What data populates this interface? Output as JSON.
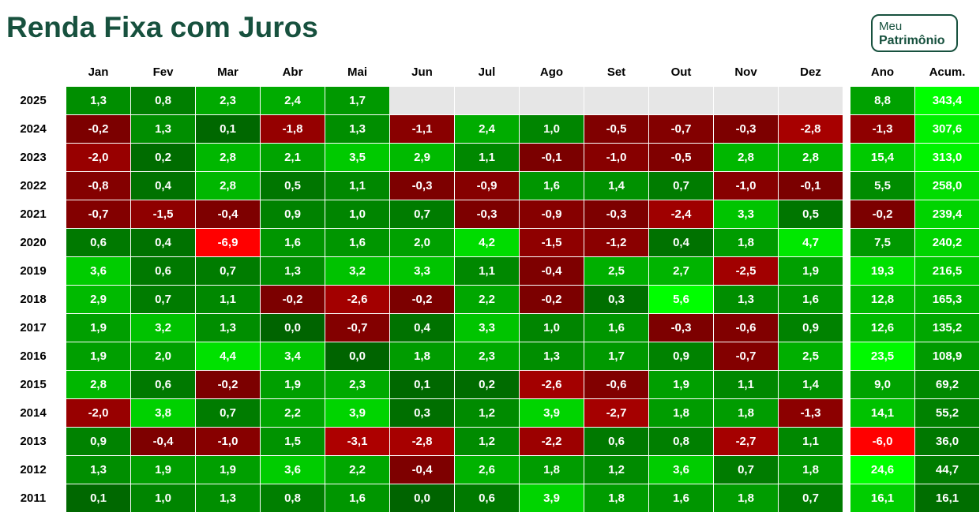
{
  "title": "Renda Fixa com Juros",
  "logo": {
    "line1": "Meu",
    "line2": "Patrimônio"
  },
  "colors": {
    "title": "#17513e",
    "empty": "#e6e6e6",
    "scale_low": "#ff0000",
    "scale_neg": "#7a0000",
    "scale_pos": "#006400",
    "scale_high": "#00ff00"
  },
  "chart_data": {
    "type": "heatmap",
    "title": "Renda Fixa com Juros",
    "columns": [
      "Jan",
      "Fev",
      "Mar",
      "Abr",
      "Mai",
      "Jun",
      "Jul",
      "Ago",
      "Set",
      "Out",
      "Nov",
      "Dez"
    ],
    "summary_columns": [
      "Ano",
      "Acum."
    ],
    "rows": [
      {
        "year": "2025",
        "months": [
          "1,3",
          "0,8",
          "2,3",
          "2,4",
          "1,7",
          null,
          null,
          null,
          null,
          null,
          null,
          null
        ],
        "ano": "8,8",
        "acum": "343,4"
      },
      {
        "year": "2024",
        "months": [
          "-0,2",
          "1,3",
          "0,1",
          "-1,8",
          "1,3",
          "-1,1",
          "2,4",
          "1,0",
          "-0,5",
          "-0,7",
          "-0,3",
          "-2,8"
        ],
        "ano": "-1,3",
        "acum": "307,6"
      },
      {
        "year": "2023",
        "months": [
          "-2,0",
          "0,2",
          "2,8",
          "2,1",
          "3,5",
          "2,9",
          "1,1",
          "-0,1",
          "-1,0",
          "-0,5",
          "2,8",
          "2,8"
        ],
        "ano": "15,4",
        "acum": "313,0"
      },
      {
        "year": "2022",
        "months": [
          "-0,8",
          "0,4",
          "2,8",
          "0,5",
          "1,1",
          "-0,3",
          "-0,9",
          "1,6",
          "1,4",
          "0,7",
          "-1,0",
          "-0,1"
        ],
        "ano": "5,5",
        "acum": "258,0"
      },
      {
        "year": "2021",
        "months": [
          "-0,7",
          "-1,5",
          "-0,4",
          "0,9",
          "1,0",
          "0,7",
          "-0,3",
          "-0,9",
          "-0,3",
          "-2,4",
          "3,3",
          "0,5"
        ],
        "ano": "-0,2",
        "acum": "239,4"
      },
      {
        "year": "2020",
        "months": [
          "0,6",
          "0,4",
          "-6,9",
          "1,6",
          "1,6",
          "2,0",
          "4,2",
          "-1,5",
          "-1,2",
          "0,4",
          "1,8",
          "4,7"
        ],
        "ano": "7,5",
        "acum": "240,2"
      },
      {
        "year": "2019",
        "months": [
          "3,6",
          "0,6",
          "0,7",
          "1,3",
          "3,2",
          "3,3",
          "1,1",
          "-0,4",
          "2,5",
          "2,7",
          "-2,5",
          "1,9"
        ],
        "ano": "19,3",
        "acum": "216,5"
      },
      {
        "year": "2018",
        "months": [
          "2,9",
          "0,7",
          "1,1",
          "-0,2",
          "-2,6",
          "-0,2",
          "2,2",
          "-0,2",
          "0,3",
          "5,6",
          "1,3",
          "1,6"
        ],
        "ano": "12,8",
        "acum": "165,3"
      },
      {
        "year": "2017",
        "months": [
          "1,9",
          "3,2",
          "1,3",
          "0,0",
          "-0,7",
          "0,4",
          "3,3",
          "1,0",
          "1,6",
          "-0,3",
          "-0,6",
          "0,9"
        ],
        "ano": "12,6",
        "acum": "135,2"
      },
      {
        "year": "2016",
        "months": [
          "1,9",
          "2,0",
          "4,4",
          "3,4",
          "0,0",
          "1,8",
          "2,3",
          "1,3",
          "1,7",
          "0,9",
          "-0,7",
          "2,5"
        ],
        "ano": "23,5",
        "acum": "108,9"
      },
      {
        "year": "2015",
        "months": [
          "2,8",
          "0,6",
          "-0,2",
          "1,9",
          "2,3",
          "0,1",
          "0,2",
          "-2,6",
          "-0,6",
          "1,9",
          "1,1",
          "1,4"
        ],
        "ano": "9,0",
        "acum": "69,2"
      },
      {
        "year": "2014",
        "months": [
          "-2,0",
          "3,8",
          "0,7",
          "2,2",
          "3,9",
          "0,3",
          "1,2",
          "3,9",
          "-2,7",
          "1,8",
          "1,8",
          "-1,3"
        ],
        "ano": "14,1",
        "acum": "55,2"
      },
      {
        "year": "2013",
        "months": [
          "0,9",
          "-0,4",
          "-1,0",
          "1,5",
          "-3,1",
          "-2,8",
          "1,2",
          "-2,2",
          "0,6",
          "0,8",
          "-2,7",
          "1,1"
        ],
        "ano": "-6,0",
        "acum": "36,0"
      },
      {
        "year": "2012",
        "months": [
          "1,3",
          "1,9",
          "1,9",
          "3,6",
          "2,2",
          "-0,4",
          "2,6",
          "1,8",
          "1,2",
          "3,6",
          "0,7",
          "1,8"
        ],
        "ano": "24,6",
        "acum": "44,7"
      },
      {
        "year": "2011",
        "months": [
          "0,1",
          "1,0",
          "1,3",
          "0,8",
          "1,6",
          "0,0",
          "0,6",
          "3,9",
          "1,8",
          "1,6",
          "1,8",
          "0,7"
        ],
        "ano": "16,1",
        "acum": "16,1"
      }
    ]
  }
}
